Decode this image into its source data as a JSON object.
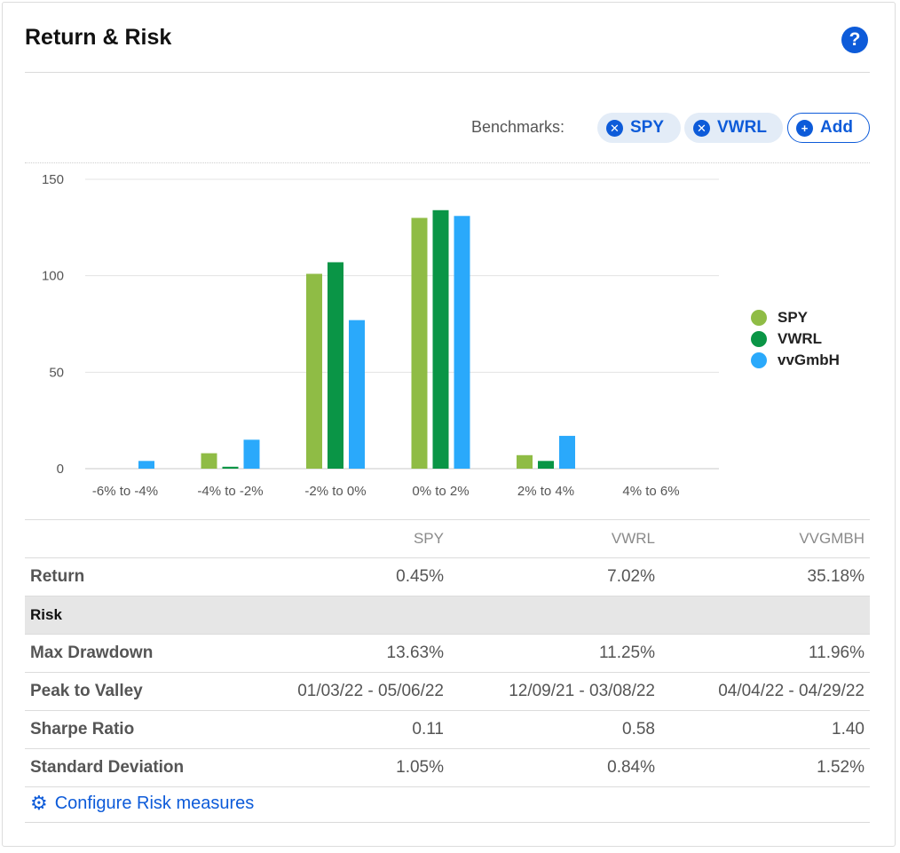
{
  "header": {
    "title": "Return & Risk",
    "help_icon": "question-circle-icon",
    "help_glyph": "?"
  },
  "benchmarks": {
    "label": "Benchmarks:",
    "chips": [
      {
        "label": "SPY",
        "icon": "remove-circle-icon"
      },
      {
        "label": "VWRL",
        "icon": "remove-circle-icon"
      }
    ],
    "add_label": "Add",
    "add_icon": "add-circle-icon"
  },
  "chart_data": {
    "type": "bar",
    "categories": [
      "-6% to -4%",
      "-4% to -2%",
      "-2% to 0%",
      "0% to 2%",
      "2% to 4%",
      "4% to 6%"
    ],
    "series": [
      {
        "name": "SPY",
        "color": "#8fbc45",
        "values": [
          0,
          8,
          101,
          130,
          7,
          0
        ]
      },
      {
        "name": "VWRL",
        "color": "#0a9546",
        "values": [
          0,
          1,
          107,
          134,
          4,
          0
        ]
      },
      {
        "name": "vvGmbH",
        "color": "#2aa9fb",
        "values": [
          4,
          15,
          77,
          131,
          17,
          0
        ]
      }
    ],
    "yticks": [
      0,
      50,
      100,
      150
    ],
    "ylim": [
      0,
      150
    ],
    "grid": true,
    "legend_position": "right"
  },
  "table": {
    "columns": [
      "SPY",
      "VWRL",
      "VVGMBH"
    ],
    "rows_top": [
      {
        "label": "Return",
        "values": [
          "0.45%",
          "7.02%",
          "35.18%"
        ]
      }
    ],
    "section_label": "Risk",
    "rows_risk": [
      {
        "label": "Max Drawdown",
        "values": [
          "13.63%",
          "11.25%",
          "11.96%"
        ]
      },
      {
        "label": "Peak to Valley",
        "values": [
          "01/03/22 - 05/06/22",
          "12/09/21 - 03/08/22",
          "04/04/22 - 04/29/22"
        ]
      },
      {
        "label": "Sharpe Ratio",
        "values": [
          "0.11",
          "0.58",
          "1.40"
        ]
      },
      {
        "label": "Standard Deviation",
        "values": [
          "1.05%",
          "0.84%",
          "1.52%"
        ]
      }
    ]
  },
  "configure": {
    "label": "Configure Risk measures",
    "icon": "gear-icon"
  }
}
